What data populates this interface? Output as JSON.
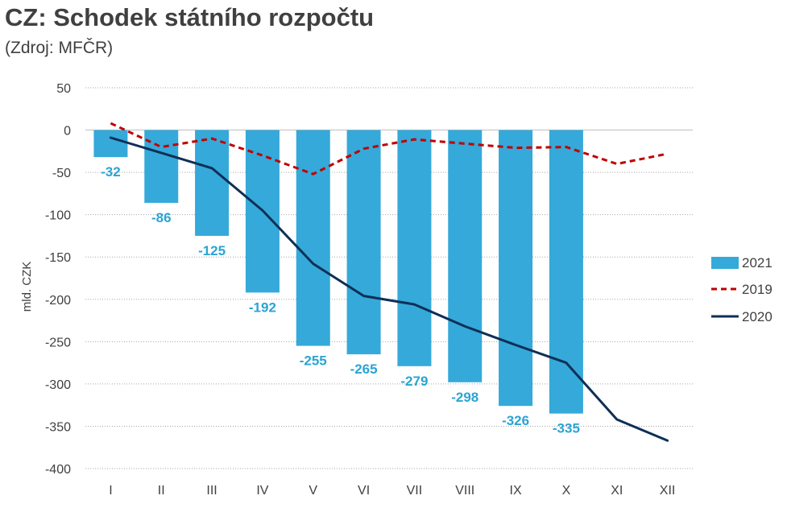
{
  "chart_data": {
    "type": "bar",
    "title": "CZ: Schodek státního rozpočtu",
    "subtitle": "(Zdroj: MFČR)",
    "xlabel": "",
    "ylabel": "mld. CZK",
    "categories": [
      "I",
      "II",
      "III",
      "IV",
      "V",
      "VI",
      "VII",
      "VIII",
      "IX",
      "X",
      "XI",
      "XII"
    ],
    "ylim": [
      -400,
      50
    ],
    "yticks": [
      50,
      0,
      -50,
      -100,
      -150,
      -200,
      -250,
      -300,
      -350,
      -400
    ],
    "grid": true,
    "legend_position": "right",
    "series": [
      {
        "name": "2021",
        "type": "bar",
        "color": "#35a9d9",
        "values": [
          -32,
          -86,
          -125,
          -192,
          -255,
          -265,
          -279,
          -298,
          -326,
          -335,
          null,
          null
        ],
        "data_labels": [
          "-32",
          "-86",
          "-125",
          "-192",
          "-255",
          "-265",
          "-279",
          "-298",
          "-326",
          "-335"
        ]
      },
      {
        "name": "2019",
        "type": "line",
        "style": "dashed",
        "color": "#c00000",
        "values": [
          8,
          -20,
          -10,
          -30,
          -52,
          -22,
          -11,
          -16,
          -21,
          -20,
          -40,
          -28
        ]
      },
      {
        "name": "2020",
        "type": "line",
        "style": "solid",
        "color": "#0e2f57",
        "values": [
          -9,
          -27,
          -45,
          -95,
          -158,
          -196,
          -206,
          -232,
          -254,
          -275,
          -342,
          -367
        ]
      }
    ]
  }
}
